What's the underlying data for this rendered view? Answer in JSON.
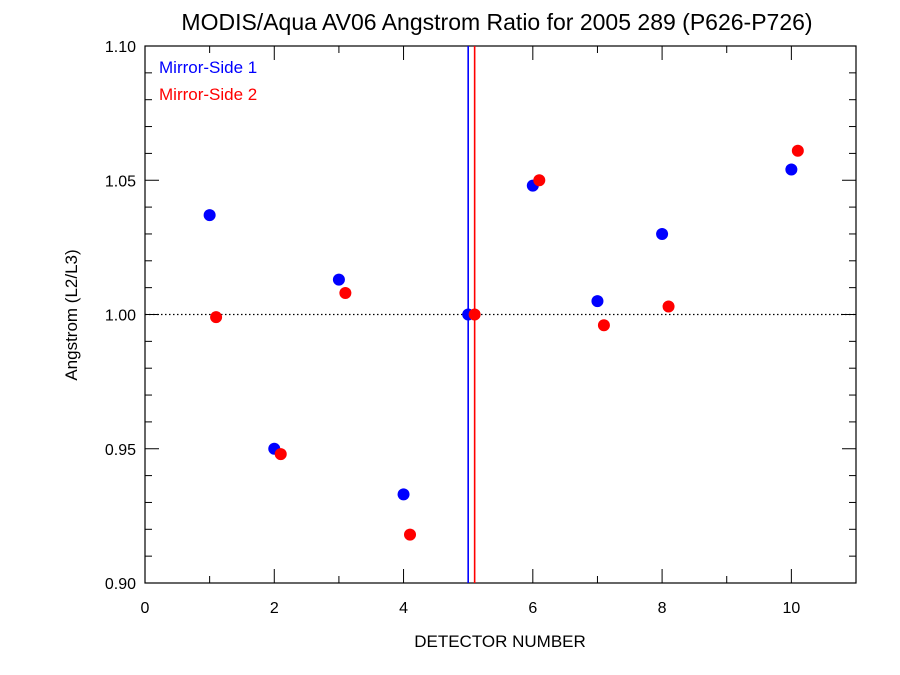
{
  "chart_data": {
    "type": "scatter",
    "title": "MODIS/Aqua AV06 Angstrom Ratio for 2005 289 (P626-P726)",
    "xlabel": "DETECTOR NUMBER",
    "ylabel": "Angstrom (L2/L3)",
    "xlim": [
      0,
      11
    ],
    "ylim": [
      0.9,
      1.1
    ],
    "x_ticks": [
      0,
      2,
      4,
      6,
      8,
      10
    ],
    "x_tick_labels": [
      "0",
      "2",
      "4",
      "6",
      "8",
      "10"
    ],
    "y_ticks": [
      0.9,
      0.95,
      1.0,
      1.05,
      1.1
    ],
    "y_tick_labels": [
      "0.90",
      "0.95",
      "1.00",
      "1.05",
      "1.10"
    ],
    "reference_line": {
      "y": 1.0,
      "style": "dotted"
    },
    "vertical_lines": [
      {
        "x": 5.0,
        "color": "#0000ff"
      },
      {
        "x": 5.1,
        "color": "#ff0000"
      }
    ],
    "legend_position": "top-left",
    "series": [
      {
        "name": "Mirror-Side 1",
        "color": "#0000ff",
        "points": [
          {
            "x": 1,
            "y": 1.037
          },
          {
            "x": 2,
            "y": 0.95
          },
          {
            "x": 3,
            "y": 1.013
          },
          {
            "x": 4,
            "y": 0.933
          },
          {
            "x": 5,
            "y": 1.0
          },
          {
            "x": 6,
            "y": 1.048
          },
          {
            "x": 7,
            "y": 1.005
          },
          {
            "x": 8,
            "y": 1.03
          },
          {
            "x": 10,
            "y": 1.054
          }
        ]
      },
      {
        "name": "Mirror-Side 2",
        "color": "#ff0000",
        "points": [
          {
            "x": 1.1,
            "y": 0.999
          },
          {
            "x": 2.1,
            "y": 0.948
          },
          {
            "x": 3.1,
            "y": 1.008
          },
          {
            "x": 4.1,
            "y": 0.918
          },
          {
            "x": 5.1,
            "y": 1.0
          },
          {
            "x": 6.1,
            "y": 1.05
          },
          {
            "x": 7.1,
            "y": 0.996
          },
          {
            "x": 8.1,
            "y": 1.003
          },
          {
            "x": 10.1,
            "y": 1.061
          }
        ]
      }
    ]
  }
}
